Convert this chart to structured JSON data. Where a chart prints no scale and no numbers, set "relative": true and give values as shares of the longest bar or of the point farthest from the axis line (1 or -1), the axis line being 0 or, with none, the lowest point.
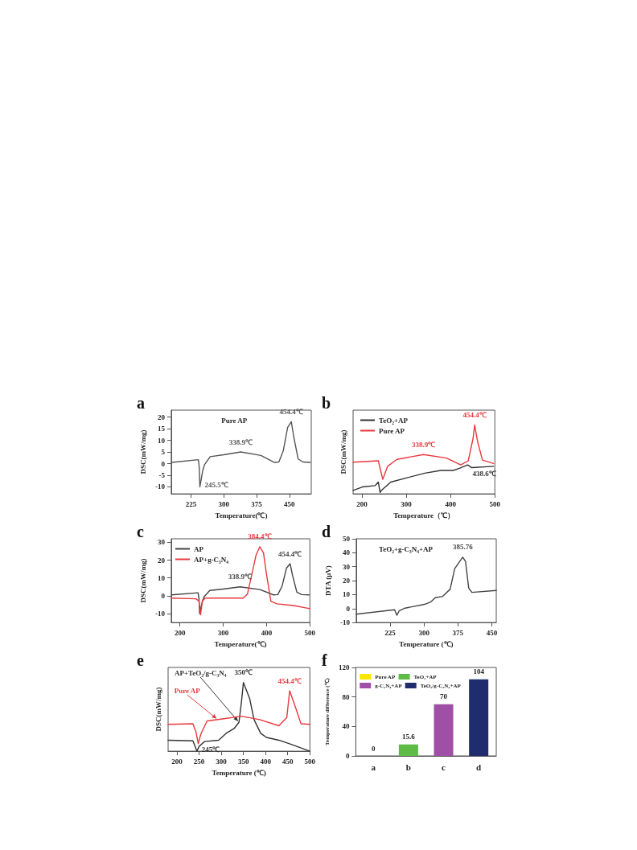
{
  "chart_data": [
    {
      "type": "line",
      "title": "a",
      "xlabel": "Temperature(℃)",
      "ylabel": "DSC(mW/mg)",
      "xlim": [
        180,
        500
      ],
      "xticks": [
        225,
        300,
        375,
        450
      ],
      "ylim": [
        -13,
        23
      ],
      "yticks": [
        -10,
        -5,
        0,
        5,
        10,
        15,
        20
      ],
      "grid": false,
      "legend": "top",
      "marker": "none",
      "series": [
        {
          "name": "Pure AP",
          "color": "#555555",
          "x": [
            181,
            242,
            244,
            245.5,
            252,
            256,
            269,
            300,
            338.9,
            385,
            416,
            426,
            436,
            446,
            454.4,
            460,
            470,
            481,
            498
          ],
          "values": [
            0.5,
            1.7,
            -1.5,
            -10,
            -3,
            -0.5,
            3,
            3.8,
            5,
            3.5,
            0.5,
            0.7,
            5.5,
            15.5,
            18,
            11.5,
            2,
            0.7,
            0.5
          ]
        }
      ],
      "annotations": [
        {
          "text": "245.5℃",
          "x": 245.5,
          "y": -10
        },
        {
          "text": "338.9℃",
          "x": 338.9,
          "y": 5
        },
        {
          "text": "454.4℃",
          "x": 454.4,
          "y": 18
        }
      ]
    },
    {
      "type": "line",
      "title": "b",
      "xlabel": "Temperature（℃）",
      "ylabel": "DSC(mW/mg)",
      "xlim": [
        180,
        500
      ],
      "xticks": [
        200,
        300,
        400,
        500
      ],
      "relative": true,
      "tick_labels": "x",
      "grid": false,
      "legend": "top left",
      "marker": "none",
      "series": [
        {
          "name": "TeO₂+AP",
          "color": "#333333",
          "x": [
            180,
            201,
            230,
            237,
            241,
            244,
            265,
            300,
            342,
            378,
            406,
            420,
            438.6,
            448,
            497
          ],
          "values": [
            0.05,
            0.1,
            0.12,
            0.17,
            0.02,
            0.05,
            0.17,
            0.23,
            0.3,
            0.34,
            0.34,
            0.37,
            0.42,
            0.38,
            0.4
          ]
        },
        {
          "name": "Pure AP",
          "color": "#e8383d",
          "x": [
            180,
            237,
            244,
            247,
            258,
            279,
            338.9,
            391,
            423,
            440,
            451,
            454.4,
            461,
            472,
            497
          ],
          "values": [
            0.46,
            0.48,
            0.29,
            0.21,
            0.4,
            0.5,
            0.57,
            0.52,
            0.42,
            0.48,
            0.81,
            1,
            0.76,
            0.49,
            0.44
          ]
        }
      ],
      "annotations": [
        {
          "text": "338.9℃",
          "x": 338.9,
          "y": 0.57
        },
        {
          "text": "454.4℃",
          "x": 454.4,
          "y": 1
        },
        {
          "text": "438.6℃",
          "x": 438.6,
          "y": 0.42
        }
      ]
    },
    {
      "type": "line",
      "title": "c",
      "xlabel": "Temperature(℃)",
      "ylabel": "DSC(mW/mg)",
      "xlim": [
        180,
        500
      ],
      "xticks": [
        200,
        300,
        400,
        500
      ],
      "ylim": [
        -15,
        32
      ],
      "yticks": [
        -10,
        0,
        10,
        20,
        30
      ],
      "grid": false,
      "legend": "top left",
      "marker": "none",
      "series": [
        {
          "name": "AP",
          "color": "#444444",
          "x": [
            181,
            242,
            244,
            245.5,
            252,
            256,
            269,
            300,
            338.9,
            385,
            416,
            426,
            436,
            446,
            454.4,
            460,
            470,
            481,
            498
          ],
          "values": [
            0.5,
            1.7,
            -1.5,
            -10,
            -3,
            -0.5,
            3,
            3.8,
            5,
            3.5,
            0.5,
            0.7,
            5.5,
            15.5,
            18,
            11.5,
            2,
            0.7,
            0.5
          ]
        },
        {
          "name": "AP+g-C₃N₄",
          "color": "#e8383d",
          "x": [
            180,
            237,
            244,
            247.6,
            252,
            258,
            346,
            356,
            366,
            376,
            384.4,
            393,
            400,
            410,
            424,
            462,
            500
          ],
          "values": [
            -1.3,
            -1.7,
            -3,
            -10.6,
            -3,
            -1.3,
            -1.3,
            1,
            12,
            23,
            27.5,
            24,
            12,
            -3,
            -4.5,
            -5.5,
            -7.2
          ]
        }
      ],
      "annotations": [
        {
          "text": "338.9℃",
          "x": 338.9,
          "y": 5
        },
        {
          "text": "384.4℃",
          "x": 384.4,
          "y": 27.5
        },
        {
          "text": "454.4℃",
          "x": 454.4,
          "y": 18
        }
      ]
    },
    {
      "type": "line",
      "title": "d",
      "xlabel": "Temperature (℃)",
      "ylabel": "DTA (μV)",
      "xlim": [
        150,
        460
      ],
      "xticks": [
        225,
        300,
        375,
        450
      ],
      "ylim": [
        -10,
        50
      ],
      "yticks": [
        -10,
        0,
        10,
        20,
        30,
        40,
        50
      ],
      "grid": false,
      "legend": "top left",
      "marker": "none",
      "series": [
        {
          "name": "TeO₂+g-C₃N₄+AP",
          "color": "#444444",
          "x": [
            150,
            235,
            240,
            245,
            258,
            301,
            315,
            325,
            341,
            358,
            368,
            381,
            385.76,
            392,
            399,
            406,
            460
          ],
          "values": [
            -4,
            -0.9,
            -4.8,
            -1.7,
            0.3,
            3,
            4.7,
            7.8,
            8.7,
            13.9,
            28.6,
            34.7,
            36.8,
            33.8,
            14.7,
            11.6,
            13
          ]
        }
      ],
      "annotations": [
        {
          "text": "385.76",
          "x": 385.76,
          "y": 36.8
        }
      ]
    },
    {
      "type": "line",
      "title": "e",
      "xlabel": "Temperature (℃)",
      "ylabel": "DSC(mW/mg)",
      "xlim": [
        180,
        500
      ],
      "xticks": [
        200,
        250,
        300,
        350,
        400,
        450,
        500
      ],
      "relative": true,
      "tick_labels": "x",
      "grid": false,
      "legend": false,
      "marker": "none",
      "series": [
        {
          "name": "AP+TeO₂/g-C₃N₄",
          "color": "#333333",
          "x": [
            180,
            236,
            242,
            245,
            250,
            262,
            294,
            311,
            329,
            340,
            346,
            350,
            364,
            374,
            389,
            402,
            430,
            458,
            500
          ],
          "values": [
            0.16,
            0.15,
            0.05,
            0,
            0.07,
            0.14,
            0.16,
            0.26,
            0.33,
            0.42,
            0.74,
            1,
            0.77,
            0.46,
            0.26,
            0.2,
            0.16,
            0.1,
            0
          ]
        },
        {
          "name": "Pure AP",
          "color": "#e8383d",
          "x": [
            180,
            236,
            243,
            248,
            254,
            268,
            303,
            345,
            387,
            430,
            448,
            454.4,
            466,
            480,
            500
          ],
          "values": [
            0.39,
            0.4,
            0.28,
            0.11,
            0.25,
            0.44,
            0.47,
            0.51,
            0.46,
            0.37,
            0.49,
            0.88,
            0.67,
            0.4,
            0.39
          ]
        }
      ],
      "annotations": [
        {
          "text": "245℃",
          "x": 245,
          "y": 0
        },
        {
          "text": "350℃",
          "x": 350,
          "y": 1
        },
        {
          "text": "454.4℃",
          "x": 454.4,
          "y": 0.88
        }
      ]
    },
    {
      "type": "bar",
      "title": "f",
      "ylabel": "Temperature difference (℃)",
      "categories": [
        "a",
        "b",
        "c",
        "d"
      ],
      "ylim": [
        0,
        120
      ],
      "yticks": [
        0,
        40,
        80,
        120
      ],
      "grid": false,
      "legend": "top",
      "stacked": true,
      "data_labels": true,
      "series": [
        {
          "name": "Pure AP",
          "color": "#ffe600",
          "values": [
            0,
            null,
            null,
            null
          ]
        },
        {
          "name": "TeO₂+AP",
          "color": "#5dbb46",
          "values": [
            null,
            15.6,
            null,
            null
          ]
        },
        {
          "name": "g-C₃N₄+AP",
          "color": "#a04fa6",
          "values": [
            null,
            null,
            70,
            null
          ]
        },
        {
          "name": "TeO₂/g-C₃N₄+AP",
          "color": "#1f2d6e",
          "values": [
            null,
            null,
            null,
            104
          ]
        }
      ]
    }
  ]
}
